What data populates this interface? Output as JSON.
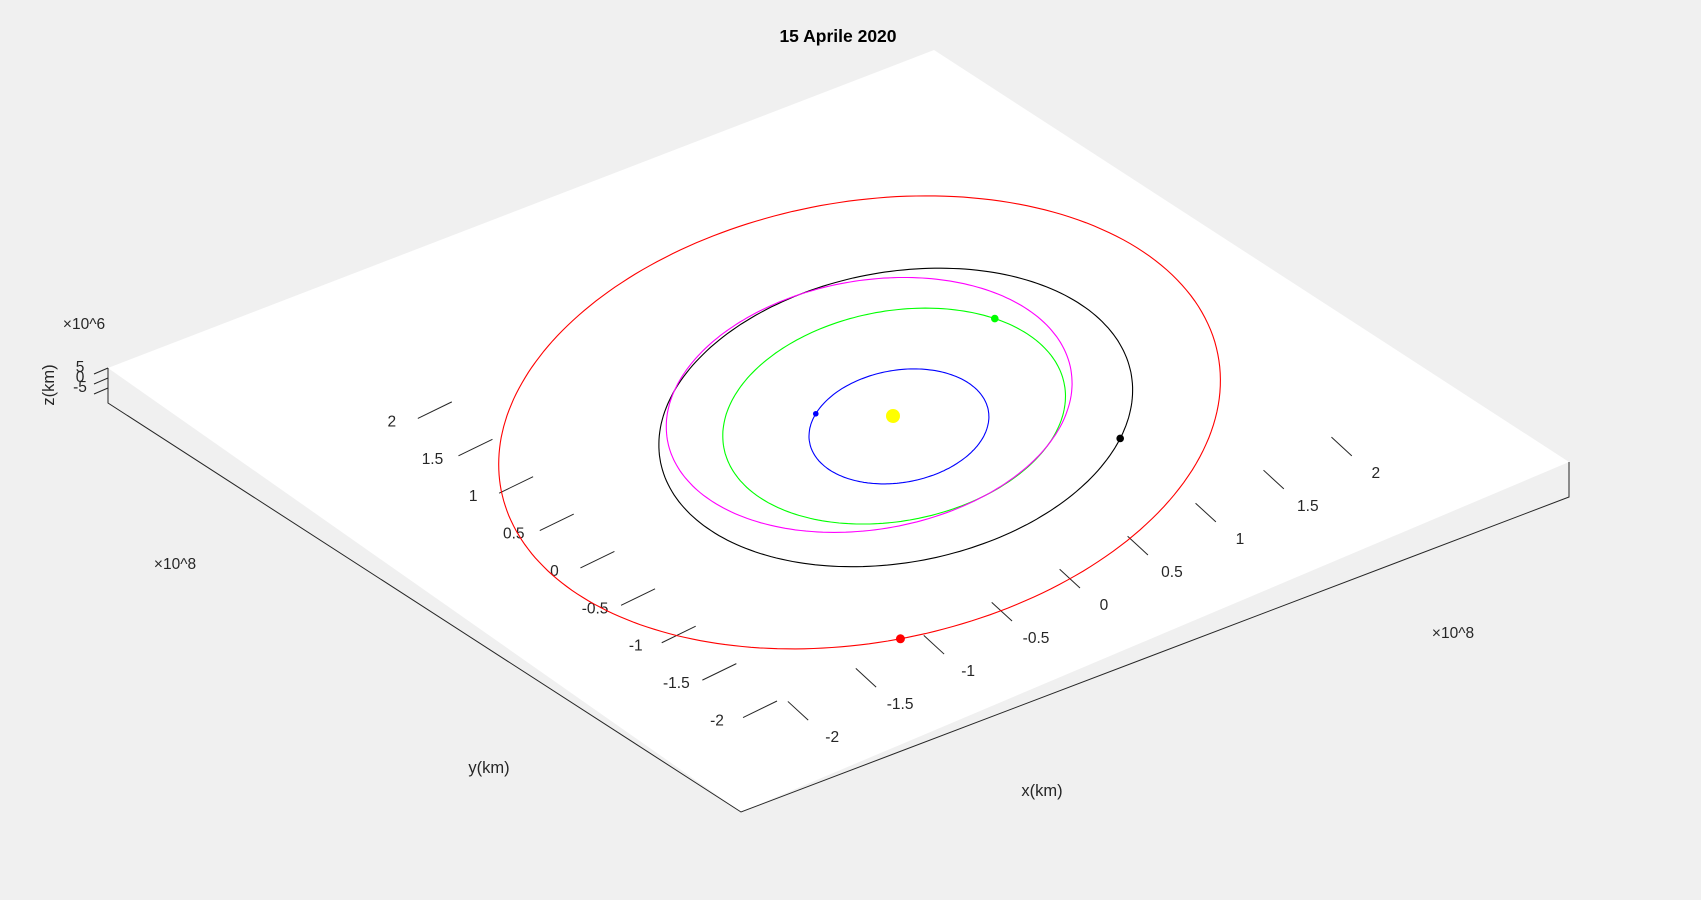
{
  "chart_data": {
    "type": "line",
    "title": "15 Aprile 2020",
    "xlabel": "x(km)",
    "ylabel": "y(km)",
    "zlabel": "z(km)",
    "x_multiplier": "×10^8",
    "y_multiplier": "×10^8",
    "z_multiplier": "×10^6",
    "xlim": [
      -2.3,
      2.3
    ],
    "ylim": [
      -2.3,
      2.3
    ],
    "x_ticks": [
      "-2",
      "-1.5",
      "-1",
      "-0.5",
      "0",
      "0.5",
      "1",
      "1.5",
      "2"
    ],
    "y_ticks": [
      "-2",
      "-1.5",
      "-1",
      "-0.5",
      "0",
      "0.5",
      "1",
      "1.5",
      "2"
    ],
    "z_ticks": [
      "-5",
      "0",
      "5"
    ],
    "grid": false,
    "legend": "none",
    "colors": {
      "sun": "#ffff00",
      "mercury": "#0000ff",
      "venus": "#00ff00",
      "earth": "#000000",
      "mars": "#ff0000",
      "spacecraft": "#ff00ff"
    },
    "bodies": [
      {
        "color": "#ffff00",
        "x": 0.0,
        "y": 0.0,
        "z": 0.0
      }
    ],
    "orbits": [
      {
        "color": "#0000ff",
        "a": 0.579,
        "e": 0.2056,
        "w_deg": 77.5,
        "M_deg": 40,
        "marker": true
      },
      {
        "color": "#00ff00",
        "a": 1.082,
        "e": 0.0068,
        "w_deg": 131.5,
        "M_deg": -108,
        "marker": true
      },
      {
        "color": "#000000",
        "a": 1.496,
        "e": 0.0167,
        "w_deg": 102.9,
        "M_deg": 208,
        "marker": true
      },
      {
        "color": "#ff0000",
        "a": 2.279,
        "e": 0.0934,
        "w_deg": 336.0,
        "M_deg": 275,
        "marker": true
      },
      {
        "color": "#ff00ff",
        "a": 1.289,
        "e": 0.16,
        "w_deg": 286.0,
        "M_deg": 180,
        "marker": false
      }
    ]
  }
}
